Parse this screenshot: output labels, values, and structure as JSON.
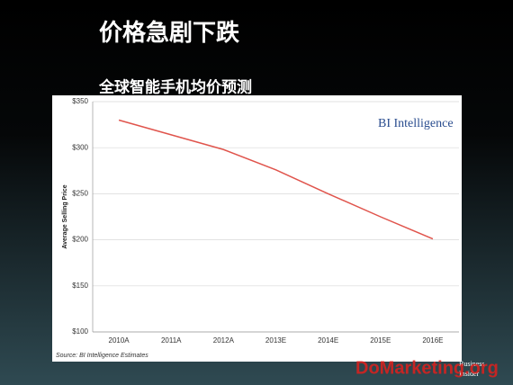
{
  "chart_data": {
    "type": "line",
    "title": "价格急剧下跌",
    "subtitle": "全球智能手机均价预测",
    "y_label": "Average Selling Price",
    "source": "Source: BI Intelligence Estimates",
    "annotations": [
      "BI Intelligence",
      "Business",
      "Insider",
      "DoMarketing.org"
    ],
    "categories": [
      "2010A",
      "2011A",
      "2012A",
      "2013E",
      "2014E",
      "2015E",
      "2016E"
    ],
    "values": [
      330,
      314,
      298,
      276,
      250,
      225,
      201
    ],
    "color": "#e0544c",
    "ylim": [
      100,
      350
    ],
    "yticks": [
      {
        "value": 100,
        "label": "$100"
      },
      {
        "value": 150,
        "label": "$150"
      },
      {
        "value": 200,
        "label": "$200"
      },
      {
        "value": 250,
        "label": "$250"
      },
      {
        "value": 300,
        "label": "$300"
      },
      {
        "value": 350,
        "label": "$350"
      }
    ],
    "grid": true
  }
}
